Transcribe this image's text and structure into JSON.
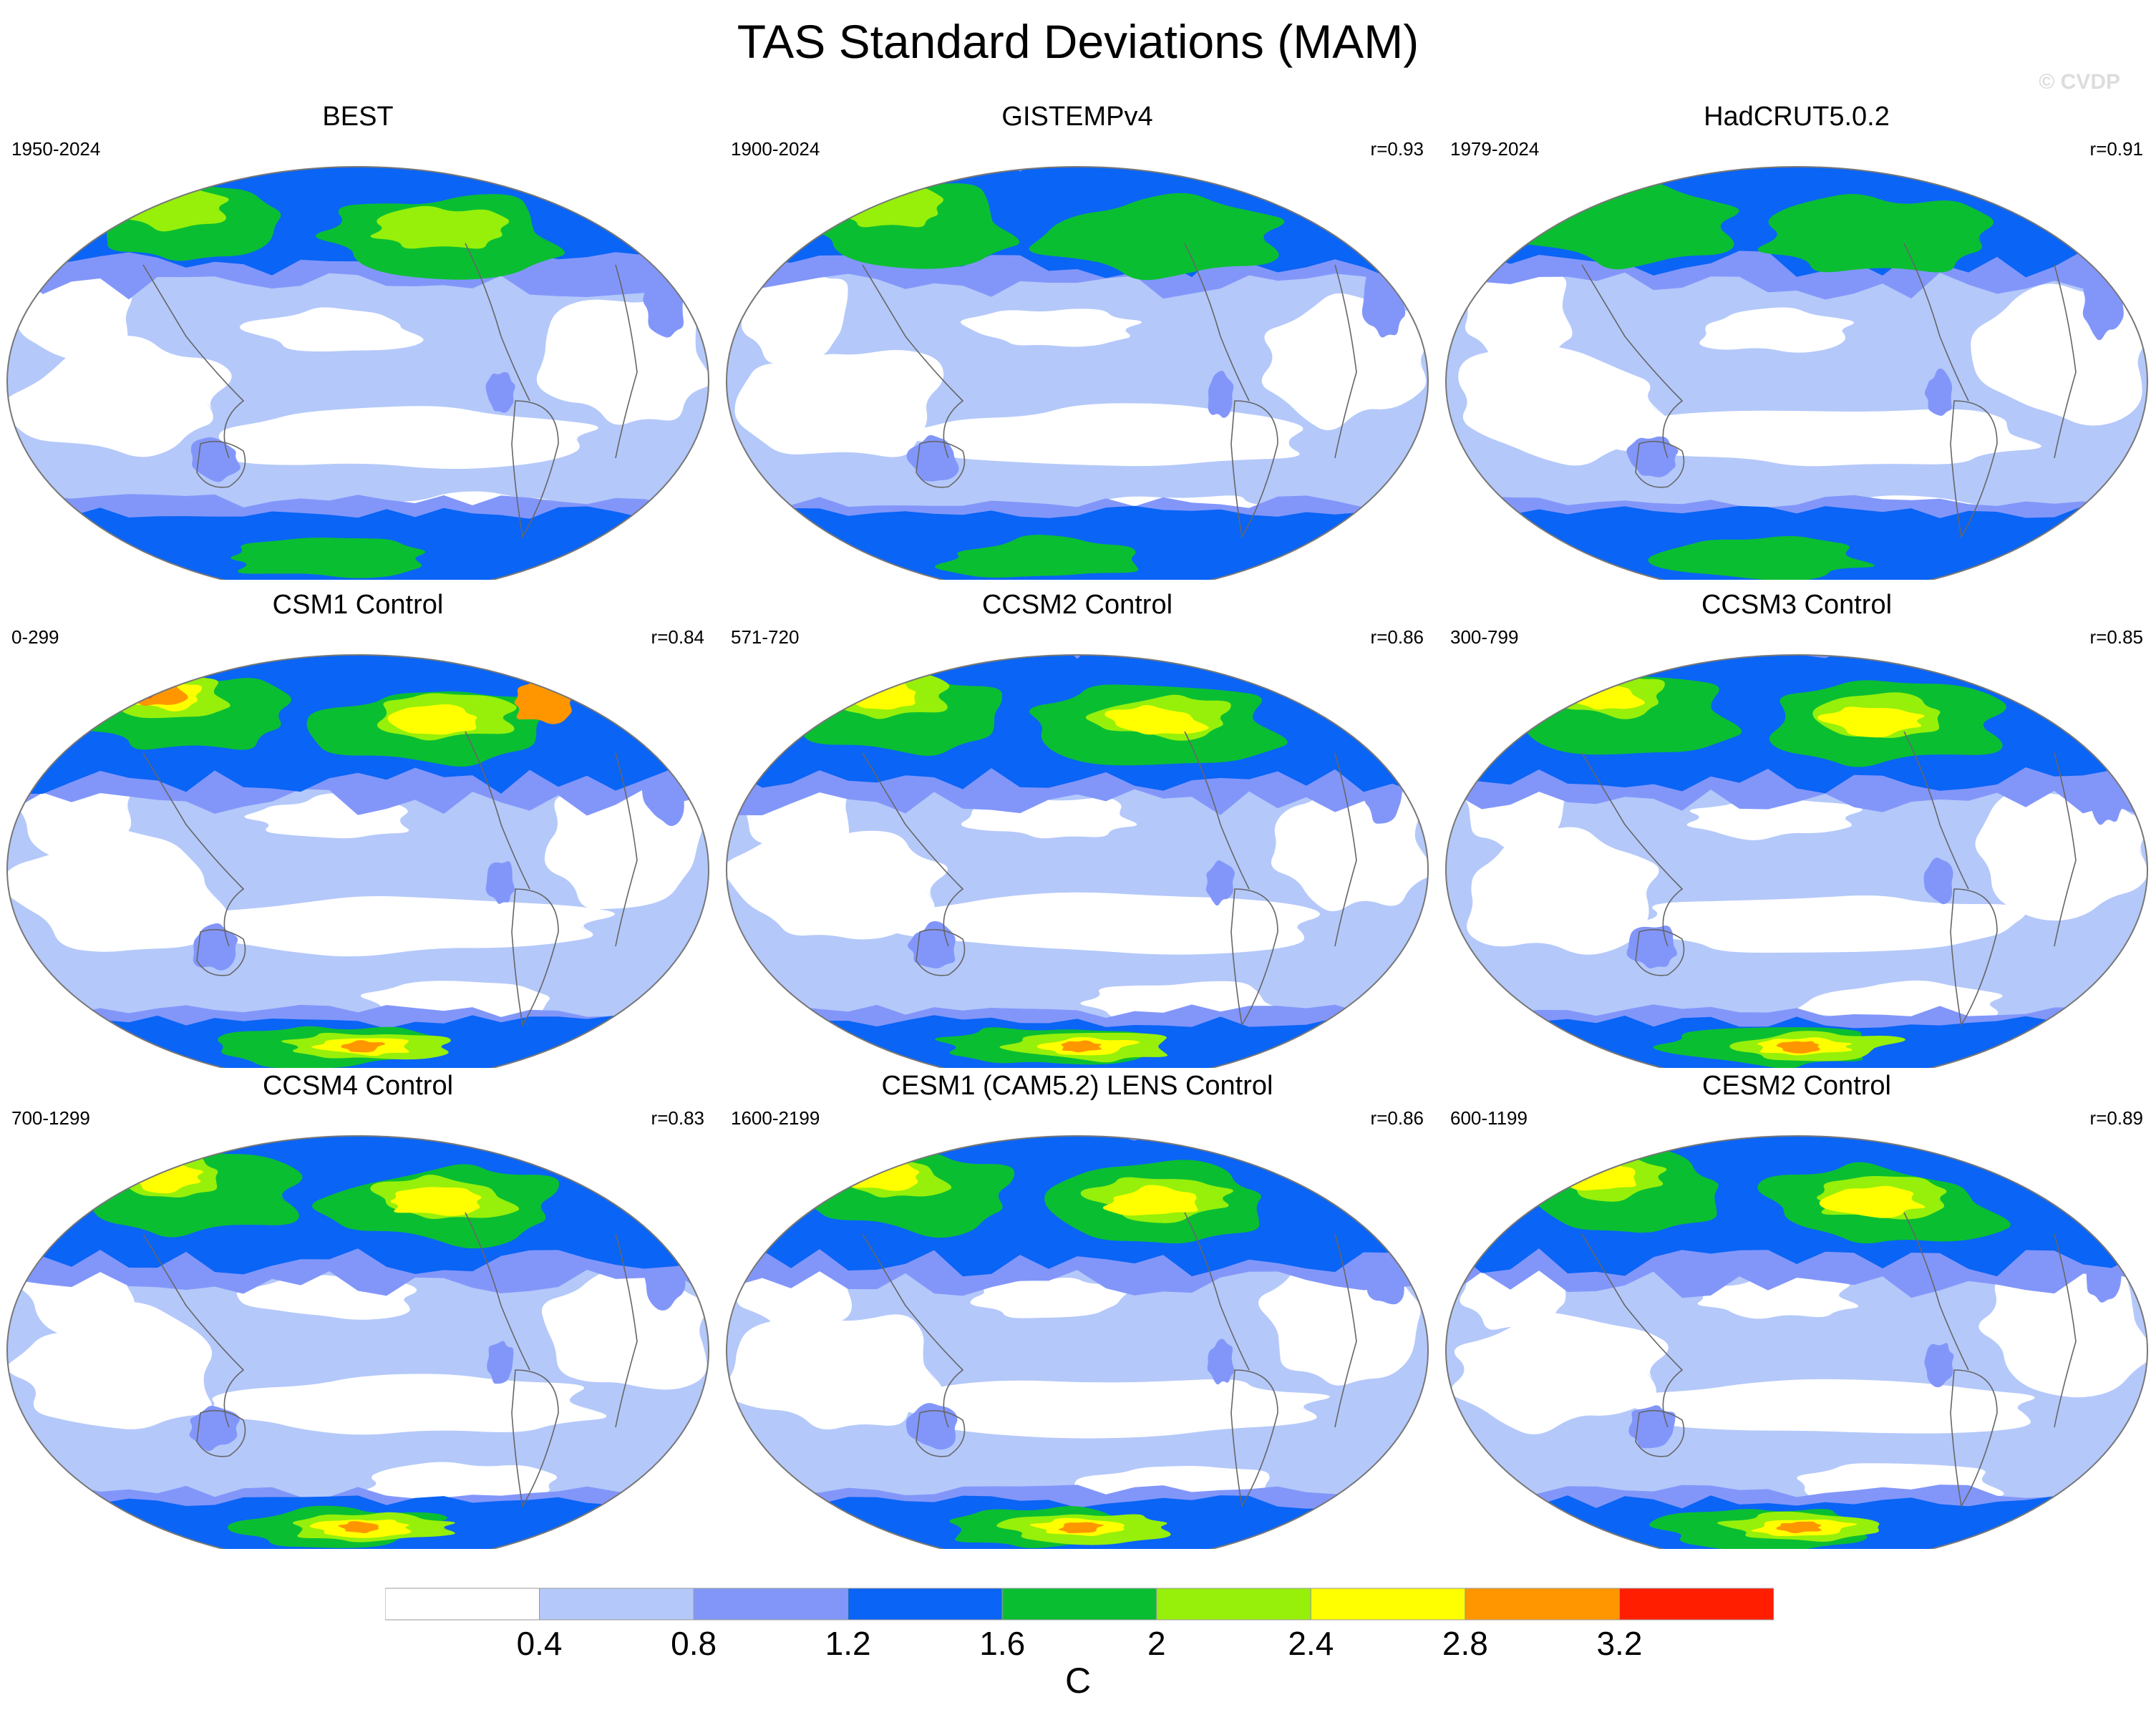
{
  "figure": {
    "title": "TAS Standard Deviations (MAM)",
    "copyright": "© CVDP"
  },
  "chart_data": {
    "type": "map",
    "panels": [
      {
        "name": "BEST",
        "period": "1950-2024",
        "r": ""
      },
      {
        "name": "GISTEMPv4",
        "period": "1900-2024",
        "r": "r=0.93"
      },
      {
        "name": "HadCRUT5.0.2",
        "period": "1979-2024",
        "r": "r=0.91"
      },
      {
        "name": "CSM1 Control",
        "period": "0-299",
        "r": "r=0.84"
      },
      {
        "name": "CCSM2 Control",
        "period": "571-720",
        "r": "r=0.86"
      },
      {
        "name": "CCSM3 Control",
        "period": "300-799",
        "r": "r=0.85"
      },
      {
        "name": "CCSM4 Control",
        "period": "700-1299",
        "r": "r=0.83"
      },
      {
        "name": "CESM1 (CAM5.2) LENS Control",
        "period": "1600-2199",
        "r": "r=0.86"
      },
      {
        "name": "CESM2 Control",
        "period": "600-1199",
        "r": "r=0.89"
      }
    ],
    "colorbar": {
      "levels": [
        "0.4",
        "0.8",
        "1.2",
        "1.6",
        "2",
        "2.4",
        "2.8",
        "3.2"
      ],
      "colors": [
        "#ffffff",
        "#b4c8fa",
        "#8296fa",
        "#0a64f5",
        "#0abe32",
        "#96f00a",
        "#ffff00",
        "#ff9600",
        "#ff1e00"
      ],
      "units": "C"
    }
  }
}
